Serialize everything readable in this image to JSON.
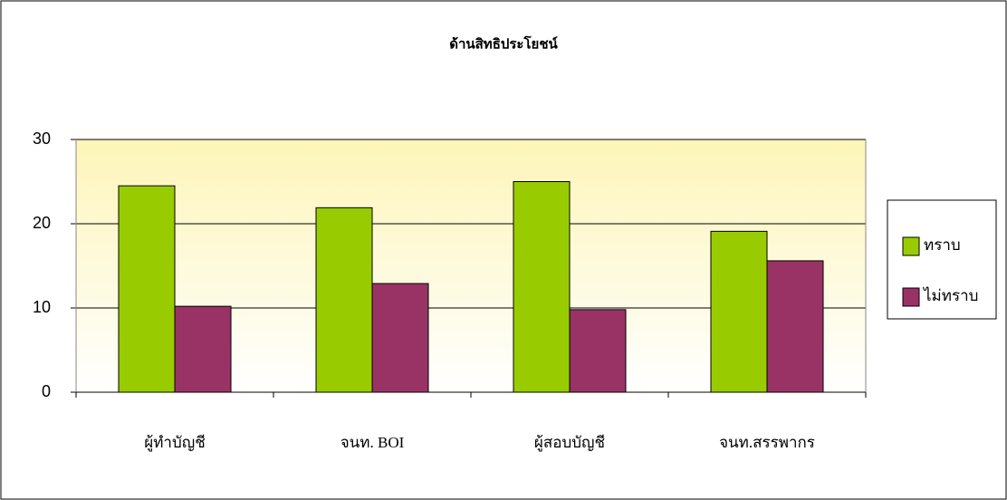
{
  "chart_data": {
    "type": "bar",
    "title": "ด้านสิทธิประโยชน์",
    "categories": [
      "ผู้ทำบัญชี",
      "จนท. BOI",
      "ผู้สอบบัญชี",
      "จนท.สรรพากร"
    ],
    "series": [
      {
        "name": "ทราบ",
        "color": "#99cc00",
        "values": [
          24.5,
          21.9,
          25,
          19.1
        ]
      },
      {
        "name": "ไม่ทราบ",
        "color": "#993366",
        "values": [
          10.2,
          12.9,
          9.8,
          15.6
        ]
      }
    ],
    "ylim": [
      0,
      30
    ],
    "yticks": [
      0,
      10,
      20,
      30
    ],
    "grid": true,
    "legend": "right"
  }
}
